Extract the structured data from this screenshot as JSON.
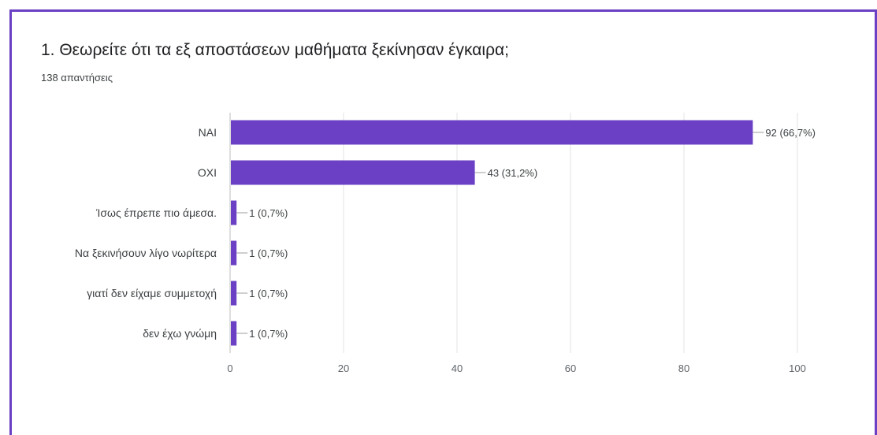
{
  "question": {
    "title": "1. Θεωρείτε ότι τα εξ αποστάσεων μαθήματα ξεκίνησαν έγκαιρα;",
    "response_count": "138 απαντήσεις"
  },
  "colors": {
    "accent": "#6b40c4",
    "bar": "#6b40c4",
    "grid": "#e3e3e3",
    "axis": "#bdbdbd"
  },
  "chart_data": {
    "type": "bar",
    "orientation": "horizontal",
    "categories": [
      "ΝΑΙ",
      "ΟΧΙ",
      "Ίσως έπρεπε πιο άμεσα.",
      "Να ξεκινήσουν λίγο νωρίτερα",
      "γιατί δεν είχαμε συμμετοχή",
      "δεν έχω γνώμη"
    ],
    "values": [
      92,
      43,
      1,
      1,
      1,
      1
    ],
    "data_labels": [
      "92 (66,7%)",
      "43 (31,2%)",
      "1 (0,7%)",
      "1 (0,7%)",
      "1 (0,7%)",
      "1 (0,7%)"
    ],
    "xlim": [
      0,
      100
    ],
    "xticks": [
      0,
      20,
      40,
      60,
      80,
      100
    ],
    "xtick_labels": [
      "0",
      "20",
      "40",
      "60",
      "80",
      "100"
    ],
    "grid": true,
    "legend": "none"
  }
}
